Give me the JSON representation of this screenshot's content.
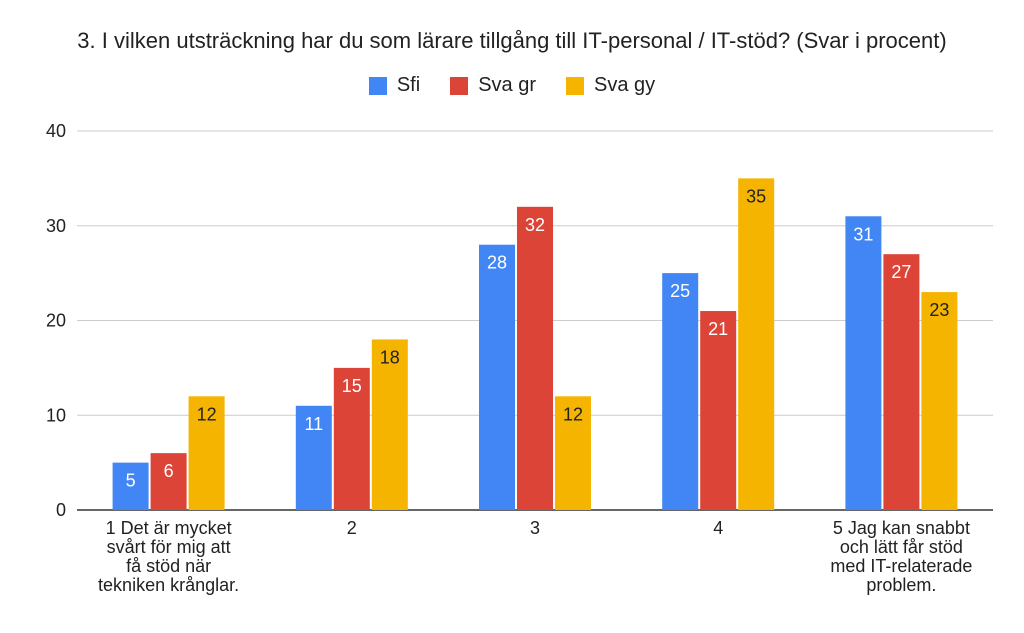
{
  "chart_data": {
    "type": "bar",
    "title": "3. I vilken utsträckning har du som lärare tillgång till IT-personal / IT-stöd? (Svar i procent)",
    "categories": [
      [
        "1 Det är mycket",
        "svårt för mig att",
        "få stöd när",
        "tekniken krånglar."
      ],
      [
        "2"
      ],
      [
        "3"
      ],
      [
        "4"
      ],
      [
        "5 Jag kan snabbt",
        "och lätt får stöd",
        "med IT-relaterade",
        "problem."
      ]
    ],
    "series": [
      {
        "name": "Sfi",
        "color": "#4285f4",
        "label_color": "#ffffff",
        "values": [
          5,
          11,
          28,
          25,
          31
        ]
      },
      {
        "name": "Sva gr",
        "color": "#db4437",
        "label_color": "#ffffff",
        "values": [
          6,
          15,
          32,
          21,
          27
        ]
      },
      {
        "name": "Sva gy",
        "color": "#f4b400",
        "label_color": "#222222",
        "values": [
          12,
          18,
          12,
          35,
          23
        ]
      }
    ],
    "ylim": [
      0,
      40
    ],
    "yticks": [
      0,
      10,
      20,
      30,
      40
    ],
    "grid": true,
    "legend_position": "top"
  }
}
